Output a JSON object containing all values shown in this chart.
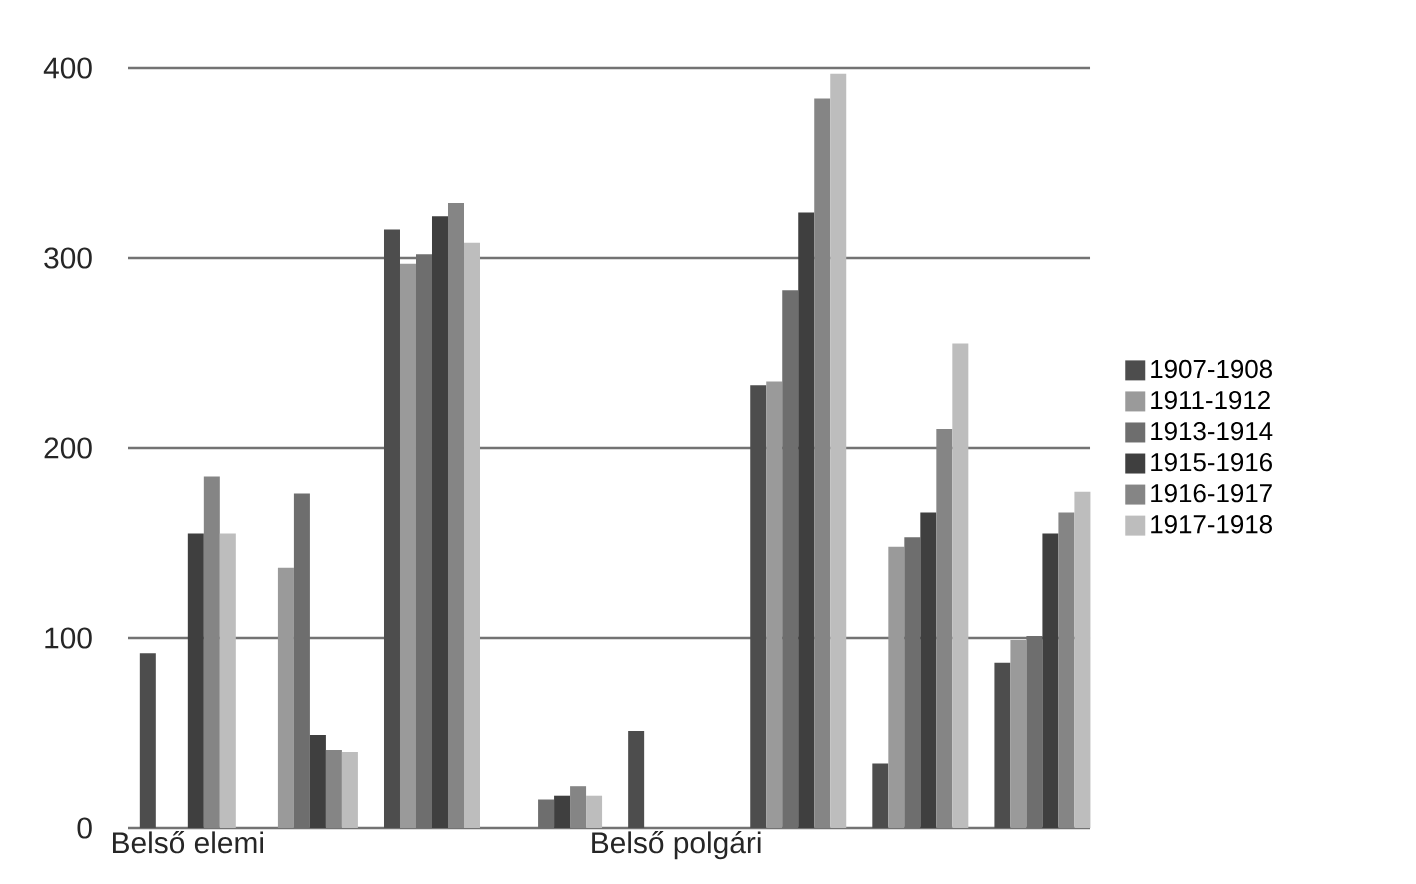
{
  "chart_data": {
    "type": "bar",
    "categories": [
      "Belső elemi",
      null,
      null,
      null,
      "Belső polgári",
      null,
      null,
      null
    ],
    "series": [
      {
        "name": "1907-1908",
        "color": "#4d4d4d",
        "values": [
          92,
          null,
          315,
          null,
          51,
          233,
          34,
          87
        ]
      },
      {
        "name": "1911-1912",
        "color": "#9a9a9a",
        "values": [
          null,
          137,
          297,
          null,
          null,
          235,
          148,
          99
        ]
      },
      {
        "name": "1913-1914",
        "color": "#6e6e6e",
        "values": [
          null,
          176,
          302,
          15,
          null,
          283,
          153,
          101
        ]
      },
      {
        "name": "1915-1916",
        "color": "#3f3f3f",
        "values": [
          155,
          49,
          322,
          17,
          null,
          324,
          166,
          155
        ]
      },
      {
        "name": "1916-1917",
        "color": "#858585",
        "values": [
          185,
          41,
          329,
          22,
          null,
          384,
          210,
          166
        ]
      },
      {
        "name": "1917-1918",
        "color": "#bdbdbd",
        "values": [
          155,
          40,
          308,
          17,
          null,
          397,
          255,
          177
        ]
      }
    ],
    "ylim": [
      0,
      400
    ],
    "yticks": [
      0,
      100,
      200,
      300,
      400
    ],
    "grid": "y",
    "legend": "right"
  }
}
